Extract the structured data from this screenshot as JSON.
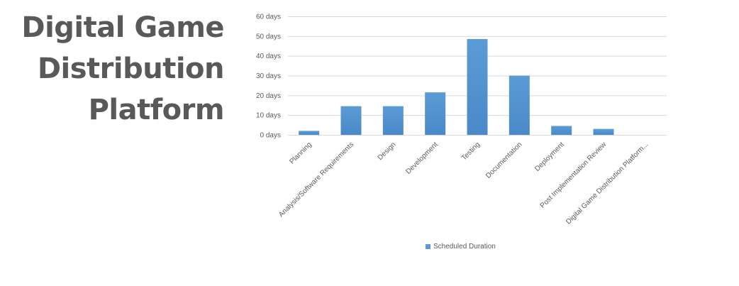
{
  "title_lines": [
    "Digital Game",
    "Distribution",
    "Platform"
  ],
  "chart_data": {
    "type": "bar",
    "categories": [
      "Planning",
      "Analysis/Software Requirements",
      "Design",
      "Development",
      "Testing",
      "Documentation",
      "Deployment",
      "Post Implementation Review",
      "Digital Game Distribution Platform..."
    ],
    "series": [
      {
        "name": "Scheduled Duration",
        "values": [
          2,
          14.5,
          14.5,
          21.5,
          48.5,
          30,
          4.5,
          3,
          0
        ]
      }
    ],
    "ylim": [
      0,
      60
    ],
    "yticks": [
      0,
      10,
      20,
      30,
      40,
      50,
      60
    ],
    "ytick_labels": [
      "0 days",
      "10 days",
      "20 days",
      "30 days",
      "40 days",
      "50 days",
      "60 days"
    ],
    "grid": true,
    "legend_position": "bottom",
    "colors": {
      "bar": "#5b9bd5",
      "bar_dark": "#4a89c8",
      "grid": "#d9d9d9",
      "text": "#595959"
    }
  }
}
